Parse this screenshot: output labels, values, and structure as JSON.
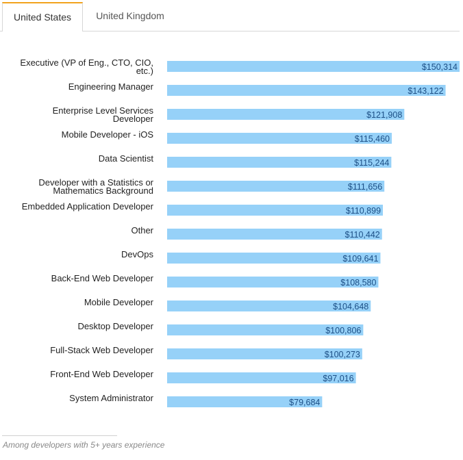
{
  "tabs": [
    {
      "label": "United States",
      "active": true
    },
    {
      "label": "United Kingdom",
      "active": false
    }
  ],
  "footnote": "Among developers with 5+ years experience",
  "colors": {
    "bar": "#96d1f8",
    "accent": "#f2a21c",
    "value_text": "#1c4f86"
  },
  "chart_data": {
    "type": "bar",
    "orientation": "horizontal",
    "categories": [
      "Executive (VP of Eng., CTO, CIO, etc.)",
      "Engineering Manager",
      "Enterprise Level Services Developer",
      "Mobile Developer - iOS",
      "Data Scientist",
      "Developer with a Statistics or Mathematics Background",
      "Embedded Application Developer",
      "Other",
      "DevOps",
      "Back-End Web Developer",
      "Mobile Developer",
      "Desktop Developer",
      "Full-Stack Web Developer",
      "Front-End Web Developer",
      "System Administrator"
    ],
    "values": [
      150314,
      143122,
      121908,
      115460,
      115244,
      111656,
      110899,
      110442,
      109641,
      108580,
      104648,
      100806,
      100273,
      97016,
      79684
    ],
    "value_labels": [
      "$150,314",
      "$143,122",
      "$121,908",
      "$115,460",
      "$115,244",
      "$111,656",
      "$110,899",
      "$110,442",
      "$109,641",
      "$108,580",
      "$104,648",
      "$100,806",
      "$100,273",
      "$97,016",
      "$79,684"
    ],
    "title": "",
    "xlabel": "",
    "ylabel": "",
    "xlim": [
      0,
      150314
    ],
    "grid": false
  }
}
